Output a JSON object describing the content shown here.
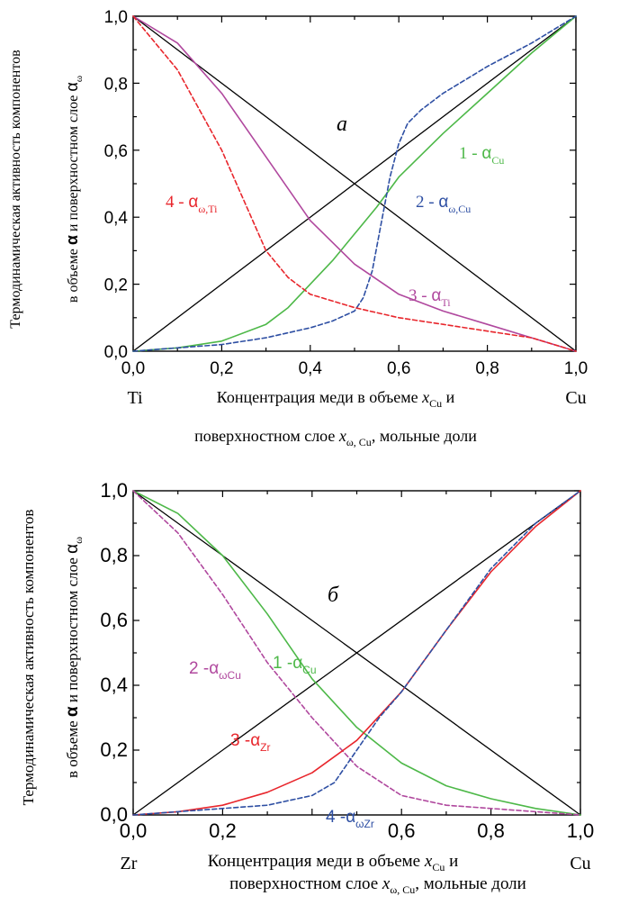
{
  "colors": {
    "axis": "#000000",
    "green": "#4db848",
    "red": "#e8262c",
    "blue": "#2e4fa3",
    "magenta": "#b0489e"
  },
  "chart_data": [
    {
      "type": "line",
      "panel_label": "а",
      "ylabel_line1": "Термодинамическая активность компонентов",
      "ylabel_line2_a": "в объеме ",
      "ylabel_alpha": "α",
      "ylabel_line2_b": " и поверхностном слое ",
      "ylabel_alpha_omega": "α",
      "ylabel_omega_sub": "ω",
      "xlabel_line1_text": "Концентрация меди в объеме ",
      "xlabel_line1_x": "x",
      "xlabel_line1_sub": "Cu",
      "xlabel_line1_tail": " и",
      "xlabel_line2_text": "поверхностном слое ",
      "xlabel_line2_x": "x",
      "xlabel_line2_sub": "ω, Cu",
      "xlabel_line2_tail": ", мольные доли",
      "x_left_element": "Ti",
      "x_right_element": "Cu",
      "xlim": [
        0,
        1
      ],
      "ylim": [
        0,
        1
      ],
      "xticks": [
        "0,0",
        "0,2",
        "0,4",
        "0,6",
        "0,8",
        "1,0"
      ],
      "yticks": [
        "0,0",
        "0,2",
        "0,4",
        "0,6",
        "0,8",
        "1,0"
      ],
      "reference_lines": [
        {
          "x": [
            0,
            1
          ],
          "y": [
            0,
            1
          ]
        },
        {
          "x": [
            0,
            1
          ],
          "y": [
            1,
            0
          ]
        }
      ],
      "series": [
        {
          "label_num": "1 - ",
          "label_sym": "α",
          "label_sub": "Cu",
          "color_key": "green",
          "dashed": false,
          "x": [
            0,
            0.1,
            0.2,
            0.3,
            0.35,
            0.4,
            0.45,
            0.5,
            0.55,
            0.6,
            0.7,
            0.8,
            0.9,
            1.0
          ],
          "y": [
            0,
            0.01,
            0.03,
            0.08,
            0.13,
            0.2,
            0.27,
            0.35,
            0.43,
            0.52,
            0.65,
            0.77,
            0.89,
            1.0
          ]
        },
        {
          "label_num": "2 - ",
          "label_sym": "α",
          "label_sub": "ω,Cu",
          "color_key": "blue",
          "dashed": true,
          "x": [
            0,
            0.1,
            0.2,
            0.3,
            0.4,
            0.45,
            0.5,
            0.52,
            0.54,
            0.56,
            0.58,
            0.6,
            0.62,
            0.65,
            0.7,
            0.8,
            0.9,
            1.0
          ],
          "y": [
            0,
            0.01,
            0.02,
            0.04,
            0.07,
            0.09,
            0.12,
            0.16,
            0.24,
            0.38,
            0.52,
            0.62,
            0.68,
            0.72,
            0.77,
            0.85,
            0.92,
            1.0
          ]
        },
        {
          "label_num": "3 - ",
          "label_sym": "α",
          "label_sub": "Ti",
          "color_key": "magenta",
          "dashed": false,
          "x": [
            0,
            0.1,
            0.2,
            0.3,
            0.4,
            0.5,
            0.6,
            0.7,
            0.8,
            0.9,
            1.0
          ],
          "y": [
            1.0,
            0.92,
            0.77,
            0.58,
            0.39,
            0.26,
            0.17,
            0.12,
            0.08,
            0.04,
            0.0
          ]
        },
        {
          "label_num": "4 - ",
          "label_sym": "α",
          "label_sub": "ω,Ti",
          "color_key": "red",
          "dashed": true,
          "x": [
            0,
            0.1,
            0.2,
            0.3,
            0.35,
            0.4,
            0.5,
            0.6,
            0.7,
            0.8,
            0.9,
            1.0
          ],
          "y": [
            1.0,
            0.84,
            0.6,
            0.3,
            0.22,
            0.17,
            0.13,
            0.1,
            0.08,
            0.06,
            0.04,
            0.0
          ]
        }
      ]
    },
    {
      "type": "line",
      "panel_label": "б",
      "ylabel_line1": "Термодинамическая активность компонентов",
      "ylabel_line2_a": "в объеме ",
      "ylabel_alpha": "α",
      "ylabel_line2_b": " и поверхностном слое ",
      "ylabel_alpha_omega": "α",
      "ylabel_omega_sub": "ω",
      "xlabel_line1_text": "Концентрация меди в объеме ",
      "xlabel_line1_x": "x",
      "xlabel_line1_sub": "Cu",
      "xlabel_line1_tail": " и",
      "xlabel_line2_text": "поверхностном слое ",
      "xlabel_line2_x": "x",
      "xlabel_line2_sub": "ω, Cu",
      "xlabel_line2_tail": ", мольные доли",
      "x_left_element": "Zr",
      "x_right_element": "Cu",
      "xlim": [
        0,
        1
      ],
      "ylim": [
        0,
        1
      ],
      "xticks": [
        "0,0",
        "0,2",
        "0,6",
        "0,8",
        "1,0"
      ],
      "xtick_positions": [
        0,
        0.2,
        0.6,
        0.8,
        1.0
      ],
      "yticks": [
        "0,0",
        "0,2",
        "0,4",
        "0,6",
        "0,8",
        "1,0"
      ],
      "reference_lines": [
        {
          "x": [
            0,
            1
          ],
          "y": [
            0,
            1
          ]
        },
        {
          "x": [
            0,
            1
          ],
          "y": [
            1,
            0
          ]
        }
      ],
      "series": [
        {
          "label_num": "1 -",
          "label_sym": "α",
          "label_sub": "Cu",
          "color_key": "green",
          "dashed": false,
          "x": [
            0,
            0.1,
            0.2,
            0.3,
            0.4,
            0.5,
            0.6,
            0.7,
            0.8,
            0.9,
            1.0
          ],
          "y": [
            1.0,
            0.93,
            0.8,
            0.62,
            0.42,
            0.27,
            0.16,
            0.09,
            0.05,
            0.02,
            0.0
          ]
        },
        {
          "label_num": "2 -",
          "label_sym": "α",
          "label_sub": "ωCu",
          "color_key": "magenta",
          "dashed": true,
          "x": [
            0,
            0.1,
            0.2,
            0.3,
            0.4,
            0.5,
            0.6,
            0.7,
            0.8,
            0.9,
            1.0
          ],
          "y": [
            1.0,
            0.87,
            0.68,
            0.47,
            0.3,
            0.15,
            0.06,
            0.03,
            0.02,
            0.01,
            0.0
          ]
        },
        {
          "label_num": "3 -",
          "label_sym": "α",
          "label_sub": "Zr",
          "color_key": "red",
          "dashed": false,
          "x": [
            0,
            0.1,
            0.2,
            0.3,
            0.4,
            0.5,
            0.6,
            0.7,
            0.8,
            0.9,
            1.0
          ],
          "y": [
            0,
            0.01,
            0.03,
            0.07,
            0.13,
            0.23,
            0.38,
            0.57,
            0.75,
            0.89,
            1.0
          ]
        },
        {
          "label_num": "4 -",
          "label_sym": "α",
          "label_sub": "ωZr",
          "color_key": "blue",
          "dashed": true,
          "x": [
            0,
            0.1,
            0.2,
            0.3,
            0.4,
            0.45,
            0.5,
            0.55,
            0.6,
            0.7,
            0.8,
            0.9,
            1.0
          ],
          "y": [
            0,
            0.01,
            0.02,
            0.03,
            0.06,
            0.1,
            0.2,
            0.3,
            0.38,
            0.57,
            0.76,
            0.9,
            1.0
          ]
        }
      ]
    }
  ]
}
